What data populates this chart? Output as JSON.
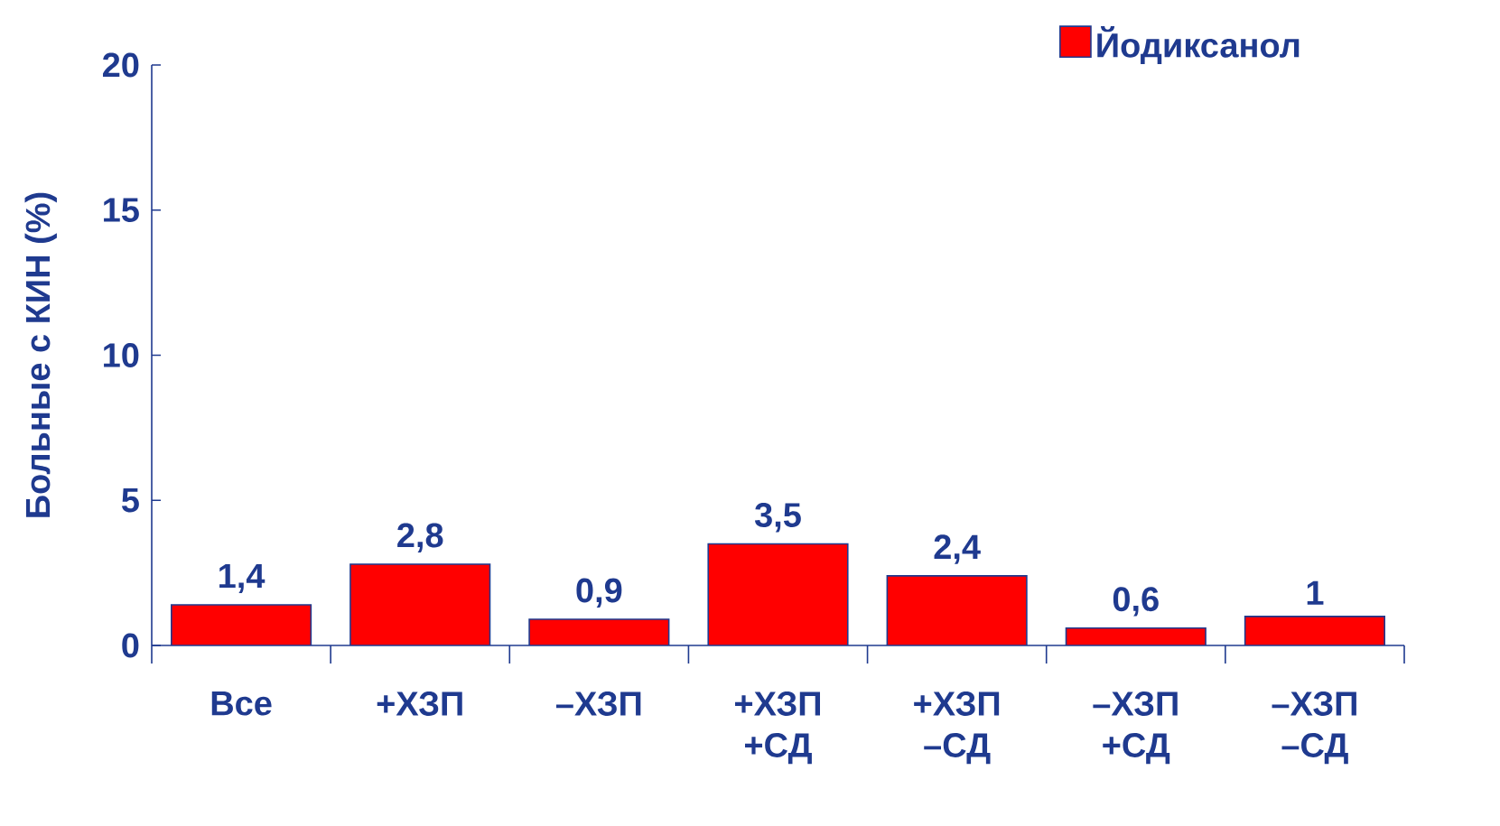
{
  "chart_data": {
    "type": "bar",
    "ylabel": "Больные с КИН (%)",
    "categories": [
      "Все",
      "+ХЗП",
      "–ХЗП",
      "+ХЗП +СД",
      "+ХЗП –СД",
      "–ХЗП +СД",
      "–ХЗП –СД"
    ],
    "series": [
      {
        "name": "Йодиксанол",
        "color": "#ff0000",
        "values": [
          1.4,
          2.8,
          0.9,
          3.5,
          2.4,
          0.6,
          1
        ]
      }
    ],
    "value_labels": [
      "1,4",
      "2,8",
      "0,9",
      "3,5",
      "2,4",
      "0,6",
      "1"
    ],
    "ylim": [
      0,
      20
    ],
    "yticks": [
      0,
      5,
      10,
      15,
      20
    ],
    "legend": "top right",
    "grid": false
  }
}
